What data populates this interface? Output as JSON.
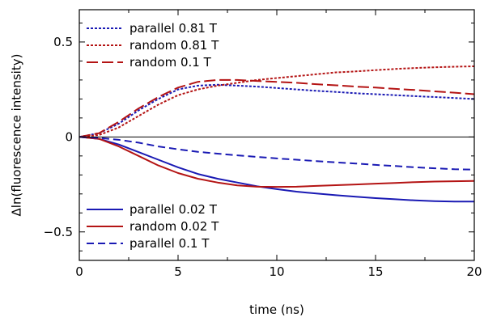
{
  "chart_data": {
    "type": "line",
    "xlabel": "time (ns)",
    "ylabel": "Δln(fluorescence intensity)",
    "xlim": [
      0,
      20
    ],
    "ylim": [
      -0.65,
      0.67
    ],
    "x_ticks": [
      0,
      5,
      10,
      15,
      20
    ],
    "y_ticks": [
      -0.5,
      0,
      0.5
    ],
    "x_tick_labels": [
      "0",
      "5",
      "10",
      "15",
      "20"
    ],
    "y_tick_labels": [
      "−0.5",
      "0",
      "0.5"
    ],
    "zero_line": true,
    "grid": false,
    "legend_top": {
      "placement": "top-left",
      "entries": [
        "parallel 0.81 T",
        "random 0.81 T",
        "random 0.1 T"
      ]
    },
    "legend_bottom": {
      "placement": "bottom-left",
      "entries": [
        "parallel 0.02 T",
        "random 0.02 T",
        "parallel 0.1 T"
      ]
    },
    "series": [
      {
        "name": "parallel 0.81 T",
        "color": "#1a1ab4",
        "dash": "dotted",
        "legend": "top",
        "x": [
          0,
          1,
          2,
          3,
          4,
          5,
          6,
          7,
          8,
          9,
          10,
          11,
          12,
          13,
          14,
          15,
          16,
          17,
          18,
          19,
          20
        ],
        "y": [
          0,
          0.02,
          0.07,
          0.14,
          0.2,
          0.25,
          0.27,
          0.275,
          0.27,
          0.265,
          0.258,
          0.25,
          0.243,
          0.237,
          0.23,
          0.225,
          0.22,
          0.215,
          0.21,
          0.205,
          0.2
        ]
      },
      {
        "name": "random 0.81 T",
        "color": "#b41414",
        "dash": "dotted",
        "legend": "top",
        "x": [
          0,
          1,
          2,
          3,
          4,
          5,
          6,
          7,
          8,
          9,
          10,
          11,
          12,
          13,
          14,
          15,
          16,
          17,
          18,
          19,
          20
        ],
        "y": [
          0,
          0.01,
          0.05,
          0.11,
          0.17,
          0.22,
          0.25,
          0.27,
          0.285,
          0.3,
          0.31,
          0.32,
          0.33,
          0.34,
          0.345,
          0.352,
          0.358,
          0.363,
          0.367,
          0.37,
          0.372
        ]
      },
      {
        "name": "random 0.1 T",
        "color": "#b41414",
        "dash": "longdash",
        "legend": "top",
        "x": [
          0,
          1,
          2,
          3,
          4,
          5,
          6,
          7,
          8,
          9,
          10,
          11,
          12,
          13,
          14,
          15,
          16,
          17,
          18,
          19,
          20
        ],
        "y": [
          0,
          0.02,
          0.08,
          0.15,
          0.21,
          0.26,
          0.29,
          0.3,
          0.3,
          0.295,
          0.29,
          0.285,
          0.278,
          0.272,
          0.265,
          0.26,
          0.253,
          0.247,
          0.24,
          0.233,
          0.225
        ]
      },
      {
        "name": "parallel 0.02 T",
        "color": "#1a1ab4",
        "dash": "solid",
        "legend": "bottom",
        "x": [
          0,
          1,
          2,
          3,
          4,
          5,
          6,
          7,
          8,
          9,
          10,
          11,
          12,
          13,
          14,
          15,
          16,
          17,
          18,
          19,
          20
        ],
        "y": [
          0,
          -0.01,
          -0.04,
          -0.08,
          -0.12,
          -0.16,
          -0.195,
          -0.22,
          -0.24,
          -0.26,
          -0.275,
          -0.288,
          -0.298,
          -0.307,
          -0.315,
          -0.322,
          -0.328,
          -0.334,
          -0.338,
          -0.34,
          -0.34
        ]
      },
      {
        "name": "random 0.02 T",
        "color": "#b41414",
        "dash": "solid",
        "legend": "bottom",
        "x": [
          0,
          1,
          2,
          3,
          4,
          5,
          6,
          7,
          8,
          9,
          10,
          11,
          12,
          13,
          14,
          15,
          16,
          17,
          18,
          19,
          20
        ],
        "y": [
          0,
          -0.01,
          -0.05,
          -0.1,
          -0.15,
          -0.19,
          -0.22,
          -0.24,
          -0.255,
          -0.262,
          -0.263,
          -0.262,
          -0.258,
          -0.254,
          -0.25,
          -0.246,
          -0.242,
          -0.238,
          -0.235,
          -0.233,
          -0.232
        ]
      },
      {
        "name": "parallel 0.1 T",
        "color": "#1a1ab4",
        "dash": "dashed",
        "legend": "bottom",
        "x": [
          0,
          1,
          2,
          3,
          4,
          5,
          6,
          7,
          8,
          9,
          10,
          11,
          12,
          13,
          14,
          15,
          16,
          17,
          18,
          19,
          20
        ],
        "y": [
          0,
          -0.005,
          -0.015,
          -0.03,
          -0.05,
          -0.065,
          -0.078,
          -0.088,
          -0.097,
          -0.105,
          -0.113,
          -0.12,
          -0.127,
          -0.134,
          -0.14,
          -0.147,
          -0.153,
          -0.16,
          -0.165,
          -0.17,
          -0.172
        ]
      }
    ]
  }
}
